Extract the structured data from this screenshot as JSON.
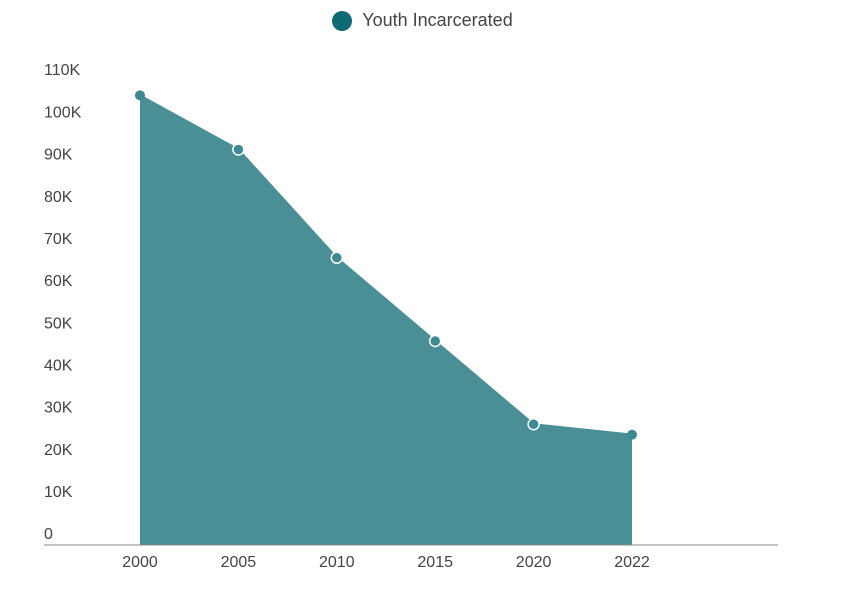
{
  "chart_data": {
    "type": "area",
    "title": "",
    "xlabel": "",
    "ylabel": "",
    "x": [
      "2000",
      "2005",
      "2010",
      "2015",
      "2020",
      "2022"
    ],
    "series": [
      {
        "name": "Youth Incarcerated",
        "values": [
          108000,
          95000,
          69000,
          49000,
          29000,
          26500
        ],
        "color": "#4a8f96",
        "marker_color": "#3f8a92",
        "legend_color": "#0f6a74"
      }
    ],
    "ylim": [
      0,
      113000
    ],
    "yticks": [
      {
        "value": 0,
        "label": "0"
      },
      {
        "value": 10000,
        "label": "10K"
      },
      {
        "value": 20000,
        "label": "20K"
      },
      {
        "value": 30000,
        "label": "30K"
      },
      {
        "value": 40000,
        "label": "40K"
      },
      {
        "value": 50000,
        "label": "50K"
      },
      {
        "value": 60000,
        "label": "60K"
      },
      {
        "value": 70000,
        "label": "70K"
      },
      {
        "value": 80000,
        "label": "80K"
      },
      {
        "value": 90000,
        "label": "90K"
      },
      {
        "value": 100000,
        "label": "100K"
      },
      {
        "value": 110000,
        "label": "110K"
      }
    ],
    "legend": "top-center",
    "grid": false
  }
}
